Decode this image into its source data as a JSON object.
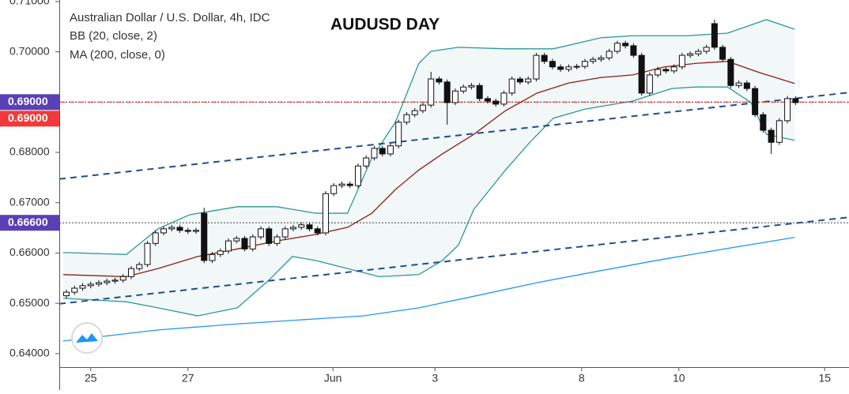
{
  "chart_data": {
    "type": "candlestick",
    "title": "AUDUSD DAY",
    "legend": [
      "Australian Dollar / U.S. Dollar, 4h, IDC",
      "BB (20, close, 2)",
      "MA (200, close, 0)"
    ],
    "xlim": [
      -0.88,
      96.6
    ],
    "xticks": [
      {
        "value": 3.0,
        "label": "25"
      },
      {
        "value": 15.0,
        "label": "27"
      },
      {
        "value": 32.9,
        "label": "Jun"
      },
      {
        "value": 45.5,
        "label": "3"
      },
      {
        "value": 63.6,
        "label": "8"
      },
      {
        "value": 75.6,
        "label": "10"
      },
      {
        "value": 93.6,
        "label": "15"
      }
    ],
    "ylim": [
      0.6373,
      0.7103
    ],
    "yticks": [
      {
        "value": 0.64,
        "label": "0.64000"
      },
      {
        "value": 0.65,
        "label": "0.65000"
      },
      {
        "value": 0.66,
        "label": "0.66000"
      },
      {
        "value": 0.67,
        "label": "0.67000"
      },
      {
        "value": 0.68,
        "label": "0.68000"
      },
      {
        "value": 0.69,
        "label": "0.69000"
      },
      {
        "value": 0.7,
        "label": "0.70000"
      },
      {
        "value": 0.71,
        "label": "0.71000"
      }
    ],
    "up_color": "#ffffff",
    "down_color": "#111111",
    "open": [
      0.6515,
      0.6522,
      0.653,
      0.6535,
      0.6538,
      0.6541,
      0.6544,
      0.6546,
      0.6553,
      0.6569,
      0.6577,
      0.6619,
      0.664,
      0.6648,
      0.6651,
      0.6645,
      0.6643,
      0.6679,
      0.6585,
      0.6597,
      0.6604,
      0.6624,
      0.6629,
      0.6608,
      0.6632,
      0.6648,
      0.6619,
      0.6632,
      0.6648,
      0.6651,
      0.6656,
      0.6648,
      0.664,
      0.6718,
      0.6734,
      0.6737,
      0.6734,
      0.6773,
      0.6789,
      0.6808,
      0.6797,
      0.6813,
      0.686,
      0.6875,
      0.6883,
      0.6894,
      0.6946,
      0.694,
      0.6899,
      0.6922,
      0.693,
      0.6933,
      0.6907,
      0.6902,
      0.6896,
      0.6918,
      0.6946,
      0.694,
      0.6946,
      0.6993,
      0.6981,
      0.697,
      0.6965,
      0.697,
      0.6971,
      0.6981,
      0.6985,
      0.6988,
      0.7001,
      0.7017,
      0.7012,
      0.6993,
      0.6918,
      0.6954,
      0.6965,
      0.6962,
      0.697,
      0.6993,
      0.6996,
      0.7001,
      0.7056,
      0.7009,
      0.6985,
      0.6933,
      0.6938,
      0.6927,
      0.6875,
      0.6844,
      0.682,
      0.6863,
      0.6907
    ],
    "high": [
      0.6527,
      0.6535,
      0.654,
      0.6543,
      0.6546,
      0.6549,
      0.6551,
      0.6558,
      0.6574,
      0.6582,
      0.6624,
      0.6645,
      0.6653,
      0.6656,
      0.6656,
      0.665,
      0.665,
      0.669,
      0.6602,
      0.6609,
      0.6629,
      0.6634,
      0.6634,
      0.6637,
      0.6653,
      0.6653,
      0.6637,
      0.6653,
      0.6656,
      0.6661,
      0.6661,
      0.6653,
      0.6723,
      0.6739,
      0.6742,
      0.6742,
      0.6778,
      0.6794,
      0.6813,
      0.6813,
      0.6818,
      0.6865,
      0.688,
      0.6888,
      0.6899,
      0.696,
      0.6951,
      0.6945,
      0.6927,
      0.6935,
      0.6938,
      0.6938,
      0.6912,
      0.6907,
      0.6923,
      0.6951,
      0.6951,
      0.6951,
      0.6998,
      0.6998,
      0.6986,
      0.6975,
      0.6975,
      0.6976,
      0.6986,
      0.699,
      0.6993,
      0.7006,
      0.7022,
      0.7022,
      0.7017,
      0.6998,
      0.6959,
      0.697,
      0.697,
      0.6975,
      0.6998,
      0.7001,
      0.7006,
      0.7014,
      0.7064,
      0.7014,
      0.699,
      0.6943,
      0.6943,
      0.6932,
      0.688,
      0.6849,
      0.6868,
      0.6912,
      0.6912
    ],
    "low": [
      0.651,
      0.6517,
      0.6525,
      0.653,
      0.6533,
      0.6536,
      0.6539,
      0.6541,
      0.6548,
      0.6564,
      0.6572,
      0.6614,
      0.6635,
      0.6643,
      0.664,
      0.6638,
      0.6638,
      0.658,
      0.658,
      0.6592,
      0.6599,
      0.6619,
      0.6603,
      0.6603,
      0.6627,
      0.6614,
      0.6614,
      0.6627,
      0.6643,
      0.6646,
      0.6643,
      0.6635,
      0.6635,
      0.6713,
      0.6729,
      0.6729,
      0.6729,
      0.6768,
      0.6784,
      0.6792,
      0.6792,
      0.6808,
      0.6855,
      0.687,
      0.6878,
      0.6889,
      0.6935,
      0.6855,
      0.6894,
      0.6917,
      0.6925,
      0.6902,
      0.6897,
      0.6891,
      0.6891,
      0.6913,
      0.6935,
      0.6935,
      0.6941,
      0.6976,
      0.6965,
      0.696,
      0.696,
      0.6965,
      0.6966,
      0.6976,
      0.698,
      0.6983,
      0.6996,
      0.7007,
      0.6988,
      0.6913,
      0.6913,
      0.6949,
      0.6957,
      0.6957,
      0.6965,
      0.6988,
      0.6991,
      0.6996,
      0.7004,
      0.698,
      0.6928,
      0.6928,
      0.6922,
      0.687,
      0.6839,
      0.6797,
      0.6815,
      0.6858,
      0.6894
    ],
    "close": [
      0.6522,
      0.653,
      0.6535,
      0.6538,
      0.6541,
      0.6544,
      0.6546,
      0.6553,
      0.6569,
      0.6577,
      0.6619,
      0.664,
      0.6648,
      0.6651,
      0.6645,
      0.6643,
      0.6645,
      0.6585,
      0.6597,
      0.6604,
      0.6624,
      0.6629,
      0.6608,
      0.6632,
      0.6648,
      0.6619,
      0.6632,
      0.6648,
      0.6651,
      0.6656,
      0.6648,
      0.664,
      0.6718,
      0.6734,
      0.6737,
      0.6734,
      0.6773,
      0.6789,
      0.6808,
      0.6797,
      0.6813,
      0.686,
      0.6875,
      0.6883,
      0.6894,
      0.6946,
      0.694,
      0.6899,
      0.6922,
      0.693,
      0.6933,
      0.6907,
      0.6902,
      0.6896,
      0.6918,
      0.6946,
      0.694,
      0.6946,
      0.6993,
      0.6981,
      0.697,
      0.6965,
      0.697,
      0.6971,
      0.6981,
      0.6985,
      0.6988,
      0.7001,
      0.7017,
      0.7012,
      0.6993,
      0.6918,
      0.6954,
      0.6965,
      0.6962,
      0.697,
      0.6993,
      0.6996,
      0.7001,
      0.7009,
      0.7009,
      0.6985,
      0.6933,
      0.6938,
      0.6927,
      0.6875,
      0.6844,
      0.682,
      0.6863,
      0.6907,
      0.6899
    ],
    "overlays": [
      {
        "color": "#2c9a96",
        "width": 1.3,
        "dash": false,
        "fill_to": 2,
        "x": [
          -0.4,
          7.4,
          11.3,
          15.2,
          21.1,
          26.0,
          30.8,
          34.7,
          37.7,
          40.6,
          43.5,
          45.0,
          48.4,
          54.2,
          60.1,
          66.0,
          69.9,
          72.8,
          76.7,
          81.6,
          86.4,
          89.9
        ],
        "values": [
          0.6601,
          0.6597,
          0.6648,
          0.6676,
          0.6692,
          0.6692,
          0.6679,
          0.6679,
          0.6789,
          0.686,
          0.6977,
          0.7001,
          0.7009,
          0.7006,
          0.7006,
          0.7028,
          0.7032,
          0.7032,
          0.7032,
          0.7037,
          0.7064,
          0.7045
        ]
      },
      {
        "color": "#8e1d1d",
        "width": 1.3,
        "dash": false,
        "x": [
          -0.4,
          7.4,
          11.3,
          16.2,
          21.1,
          26.0,
          30.8,
          34.7,
          37.7,
          40.6,
          43.5,
          46.4,
          50.3,
          54.2,
          58.1,
          62.0,
          66.0,
          69.9,
          73.8,
          77.7,
          81.6,
          85.5,
          89.9
        ],
        "values": [
          0.6557,
          0.6553,
          0.6569,
          0.6593,
          0.6608,
          0.6624,
          0.6637,
          0.6651,
          0.6679,
          0.6726,
          0.6765,
          0.6797,
          0.6836,
          0.6883,
          0.6918,
          0.6938,
          0.6949,
          0.6954,
          0.697,
          0.6977,
          0.6981,
          0.6959,
          0.6937
        ]
      },
      {
        "color": "#2c9a96",
        "width": 1.3,
        "dash": false,
        "x": [
          -0.4,
          7.4,
          11.3,
          16.2,
          21.1,
          25.0,
          27.9,
          30.8,
          34.7,
          38.6,
          43.5,
          46.4,
          48.4,
          50.3,
          54.2,
          57.2,
          60.1,
          64.0,
          69.9,
          74.7,
          77.7,
          81.6,
          84.5,
          86.4,
          89.9
        ],
        "values": [
          0.651,
          0.6503,
          0.6491,
          0.6475,
          0.6491,
          0.6546,
          0.6593,
          0.6585,
          0.6569,
          0.6553,
          0.6557,
          0.6585,
          0.6616,
          0.6687,
          0.6765,
          0.682,
          0.6868,
          0.6886,
          0.6902,
          0.6927,
          0.693,
          0.693,
          0.6899,
          0.6836,
          0.6824
        ]
      },
      {
        "color": "#2196f3",
        "width": 1.3,
        "dash": false,
        "x": [
          -0.4,
          11.3,
          21.1,
          30.8,
          36.7,
          43.5,
          50.3,
          58.1,
          66.0,
          73.8,
          81.6,
          89.9
        ],
        "values": [
          0.6425,
          0.6447,
          0.6459,
          0.6469,
          0.6475,
          0.6491,
          0.6514,
          0.6541,
          0.6565,
          0.6588,
          0.6609,
          0.6631
        ]
      },
      {
        "color": "#1d4e8f",
        "width": 2,
        "dash": true,
        "x": [
          -0.88,
          96.6
        ],
        "values": [
          0.6747,
          0.6919
        ]
      },
      {
        "color": "#1d4e8f",
        "width": 2,
        "dash": true,
        "x": [
          -0.88,
          96.6
        ],
        "values": [
          0.6499,
          0.6671
        ]
      }
    ],
    "levels": [
      {
        "value": 0.69,
        "label": "0.69000",
        "color": "#5b3fb5",
        "line_color": "#333333",
        "line": "dotted"
      },
      {
        "value": 0.69,
        "label": "0.69000",
        "color": "#f23a3a",
        "line_color": "#f23a3a",
        "line": "dashed"
      },
      {
        "value": 0.666,
        "label": "0.66600",
        "color": "#5b3fb5",
        "line_color": "#555555",
        "line": "dotted"
      }
    ]
  }
}
